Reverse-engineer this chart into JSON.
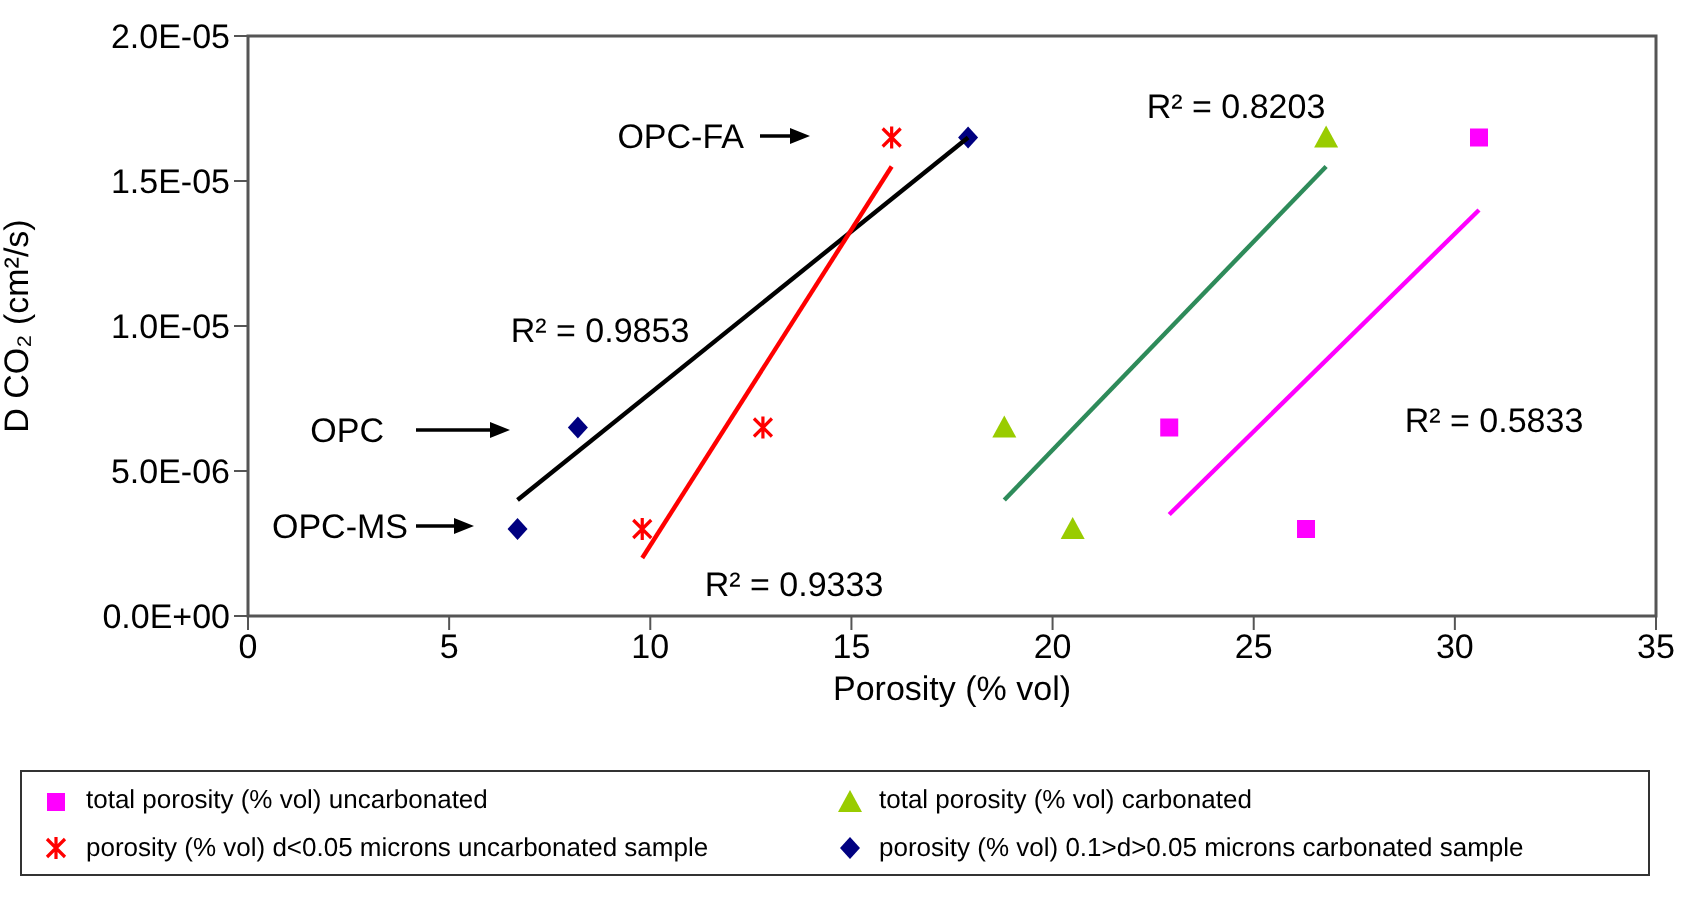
{
  "chart_data": {
    "type": "scatter",
    "xlabel": "Porosity (% vol)",
    "ylabel": "D CO₂ (cm²/s)",
    "xlim": [
      0,
      35
    ],
    "xticks": [
      0,
      5,
      10,
      15,
      20,
      25,
      30,
      35
    ],
    "ylim": [
      0,
      2e-05
    ],
    "yticks": [
      {
        "value": 0,
        "label": "0.0E+00"
      },
      {
        "value": 5e-06,
        "label": "5.0E-06"
      },
      {
        "value": 1e-05,
        "label": "1.0E-05"
      },
      {
        "value": 1.5e-05,
        "label": "1.5E-05"
      },
      {
        "value": 2e-05,
        "label": "2.0E-05"
      }
    ],
    "grid": false,
    "legend": "bottom",
    "series": [
      {
        "name": "total porosity (% vol) uncarbonated",
        "marker": "square",
        "color": "#ff00ff",
        "x": [
          30.6,
          22.9,
          26.3
        ],
        "values": [
          1.65e-05,
          6.5e-06,
          3e-06
        ]
      },
      {
        "name": "total porosity (% vol) carbonated",
        "marker": "triangle",
        "color": "#99cc00",
        "x": [
          26.8,
          18.8,
          20.5
        ],
        "values": [
          1.65e-05,
          6.5e-06,
          3e-06
        ]
      },
      {
        "name": "porosity (% vol) d<0.05 microns uncarbonated sample",
        "marker": "cross",
        "color": "#ff0000",
        "x": [
          16.0,
          12.8,
          9.8
        ],
        "values": [
          1.65e-05,
          6.5e-06,
          3e-06
        ]
      },
      {
        "name": "porosity (% vol)  0.1>d>0.05 microns carbonated sample",
        "marker": "diamond",
        "color": "#000080",
        "x": [
          17.9,
          8.2,
          6.7
        ],
        "values": [
          1.65e-05,
          6.5e-06,
          3e-06
        ]
      },
      {
        "type": "line",
        "color": "#000000",
        "x": [
          6.7,
          17.9
        ],
        "values": [
          4e-06,
          1.65e-05
        ]
      },
      {
        "type": "line",
        "color": "#ff0000",
        "x": [
          9.8,
          16.0
        ],
        "values": [
          2e-06,
          1.55e-05
        ]
      },
      {
        "type": "line",
        "color": "#2e8b5a",
        "x": [
          18.8,
          26.8
        ],
        "values": [
          4e-06,
          1.55e-05
        ]
      },
      {
        "type": "line",
        "color": "#ff00ff",
        "x": [
          22.9,
          30.6
        ],
        "values": [
          3.5e-06,
          1.4e-05
        ]
      }
    ],
    "annotations": [
      "OPC-FA",
      "OPC",
      "OPC-MS",
      "R² = 0.9853",
      "R² = 0.9333",
      "R² = 0.8203",
      "R² = 0.5833"
    ]
  }
}
